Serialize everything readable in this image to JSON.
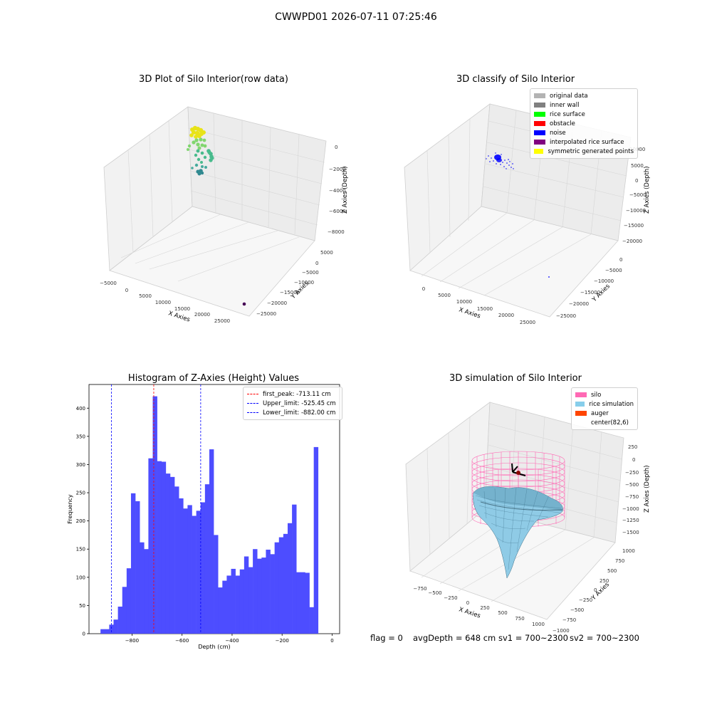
{
  "suptitle": "CWWPD01 2026-07-11 07:25:46",
  "status": {
    "flag": "flag = 0",
    "avgDepth": "avgDepth = 648 cm",
    "sv1": "sv1 = 700~2300",
    "sv2": "sv2 = 700~2300"
  },
  "colors": {
    "histogram_bar": "#4d4dff",
    "peak_line": "#ff0000",
    "limit_line": "#0000ff",
    "silo": "#ff69b4",
    "rice": "#87ceeb",
    "auger": "#ff4500"
  },
  "chart_data": [
    {
      "type": "scatter",
      "projection": "3d",
      "title": "3D Plot of Silo Interior(row data)",
      "xlabel": "X Axies",
      "ylabel": "Y Axies",
      "zlabel": "Z Axies (Depth)",
      "x_ticks": [
        "−5000",
        "0",
        "5000",
        "10000",
        "15000",
        "20000",
        "25000"
      ],
      "y_ticks": [
        "5000",
        "0",
        "−5000",
        "−10000",
        "−15000",
        "−20000",
        "−25000"
      ],
      "z_ticks": [
        "0",
        "−2000",
        "−4000",
        "−6000",
        "−8000"
      ],
      "grid": true
    },
    {
      "type": "scatter",
      "projection": "3d",
      "title": "3D classify of Silo Interior",
      "xlabel": "X Axies",
      "ylabel": "Y Axies",
      "zlabel": "Z Axies (Depth)",
      "x_ticks": [
        "0",
        "5000",
        "10000",
        "15000",
        "20000",
        "25000"
      ],
      "y_ticks": [
        "0",
        "−5000",
        "−10000",
        "−15000",
        "−20000",
        "−25000"
      ],
      "z_ticks": [
        "10000",
        "5000",
        "0",
        "−5000",
        "−10000",
        "−15000",
        "−20000"
      ],
      "legend": [
        {
          "label": "original data",
          "color": "#b3b3b3"
        },
        {
          "label": "inner wall",
          "color": "#808080"
        },
        {
          "label": "rice surface",
          "color": "#00ff00"
        },
        {
          "label": "obstacle",
          "color": "#ff0000"
        },
        {
          "label": "noise",
          "color": "#0000ff"
        },
        {
          "label": "interpolated rice surface",
          "color": "#800080"
        },
        {
          "label": "symmetric generated points",
          "color": "#ffff00"
        }
      ],
      "legend_position": "top-right",
      "grid": true
    },
    {
      "type": "bar",
      "title": "Histogram of Z-Axies (Height) Values",
      "xlabel": "Depth (cm)",
      "ylabel": "Frequency",
      "xlim": [
        -972,
        30
      ],
      "ylim": [
        0,
        442
      ],
      "x_ticks": [
        -800,
        -600,
        -400,
        -200,
        0
      ],
      "x_tick_labels": [
        "−800",
        "−600",
        "−400",
        "−200",
        "0"
      ],
      "y_ticks": [
        0,
        50,
        100,
        150,
        200,
        250,
        300,
        350,
        400
      ],
      "bin_width": 17.4,
      "bin_start": -926,
      "values": [
        8,
        8,
        16,
        25,
        48,
        83,
        116,
        249,
        235,
        162,
        150,
        311,
        421,
        306,
        305,
        284,
        278,
        261,
        240,
        222,
        228,
        209,
        218,
        233,
        265,
        327,
        175,
        82,
        94,
        103,
        115,
        103,
        114,
        137,
        118,
        150,
        133,
        135,
        149,
        141,
        162,
        171,
        177,
        196,
        229,
        109,
        109,
        108,
        47,
        331
      ],
      "vlines": [
        {
          "label": "first_peak: -713.11 cm",
          "x": -713.11,
          "color": "#ff0000"
        },
        {
          "label": "Upper_limit: -525.45 cm",
          "x": -525.45,
          "color": "#0000ff"
        },
        {
          "label": "Lower_limit: -882.00 cm",
          "x": -882.0,
          "color": "#0000ff"
        }
      ],
      "legend_position": "top-right",
      "grid": false
    },
    {
      "type": "surface",
      "projection": "3d",
      "title": "3D simulation of Silo Interior",
      "xlabel": "X Axies",
      "ylabel": "Y Axies",
      "zlabel": "Z Axies (Depth)",
      "x_ticks": [
        "−750",
        "−500",
        "−250",
        "0",
        "250",
        "500",
        "750",
        "1000"
      ],
      "y_ticks": [
        "1000",
        "750",
        "500",
        "250",
        "0",
        "−250",
        "−500",
        "−750",
        "−1000"
      ],
      "z_ticks": [
        "250",
        "0",
        "−250",
        "−500",
        "−750",
        "−1000",
        "−1250",
        "−1500"
      ],
      "legend": [
        {
          "label": "silo",
          "color": "#ff69b4"
        },
        {
          "label": "rice simulation",
          "color": "#87ceeb"
        },
        {
          "label": "auger",
          "color": "#ff4500"
        },
        {
          "label": "center(82,6)",
          "color": "#ffffff"
        }
      ],
      "legend_position": "top-right",
      "grid": true
    }
  ]
}
